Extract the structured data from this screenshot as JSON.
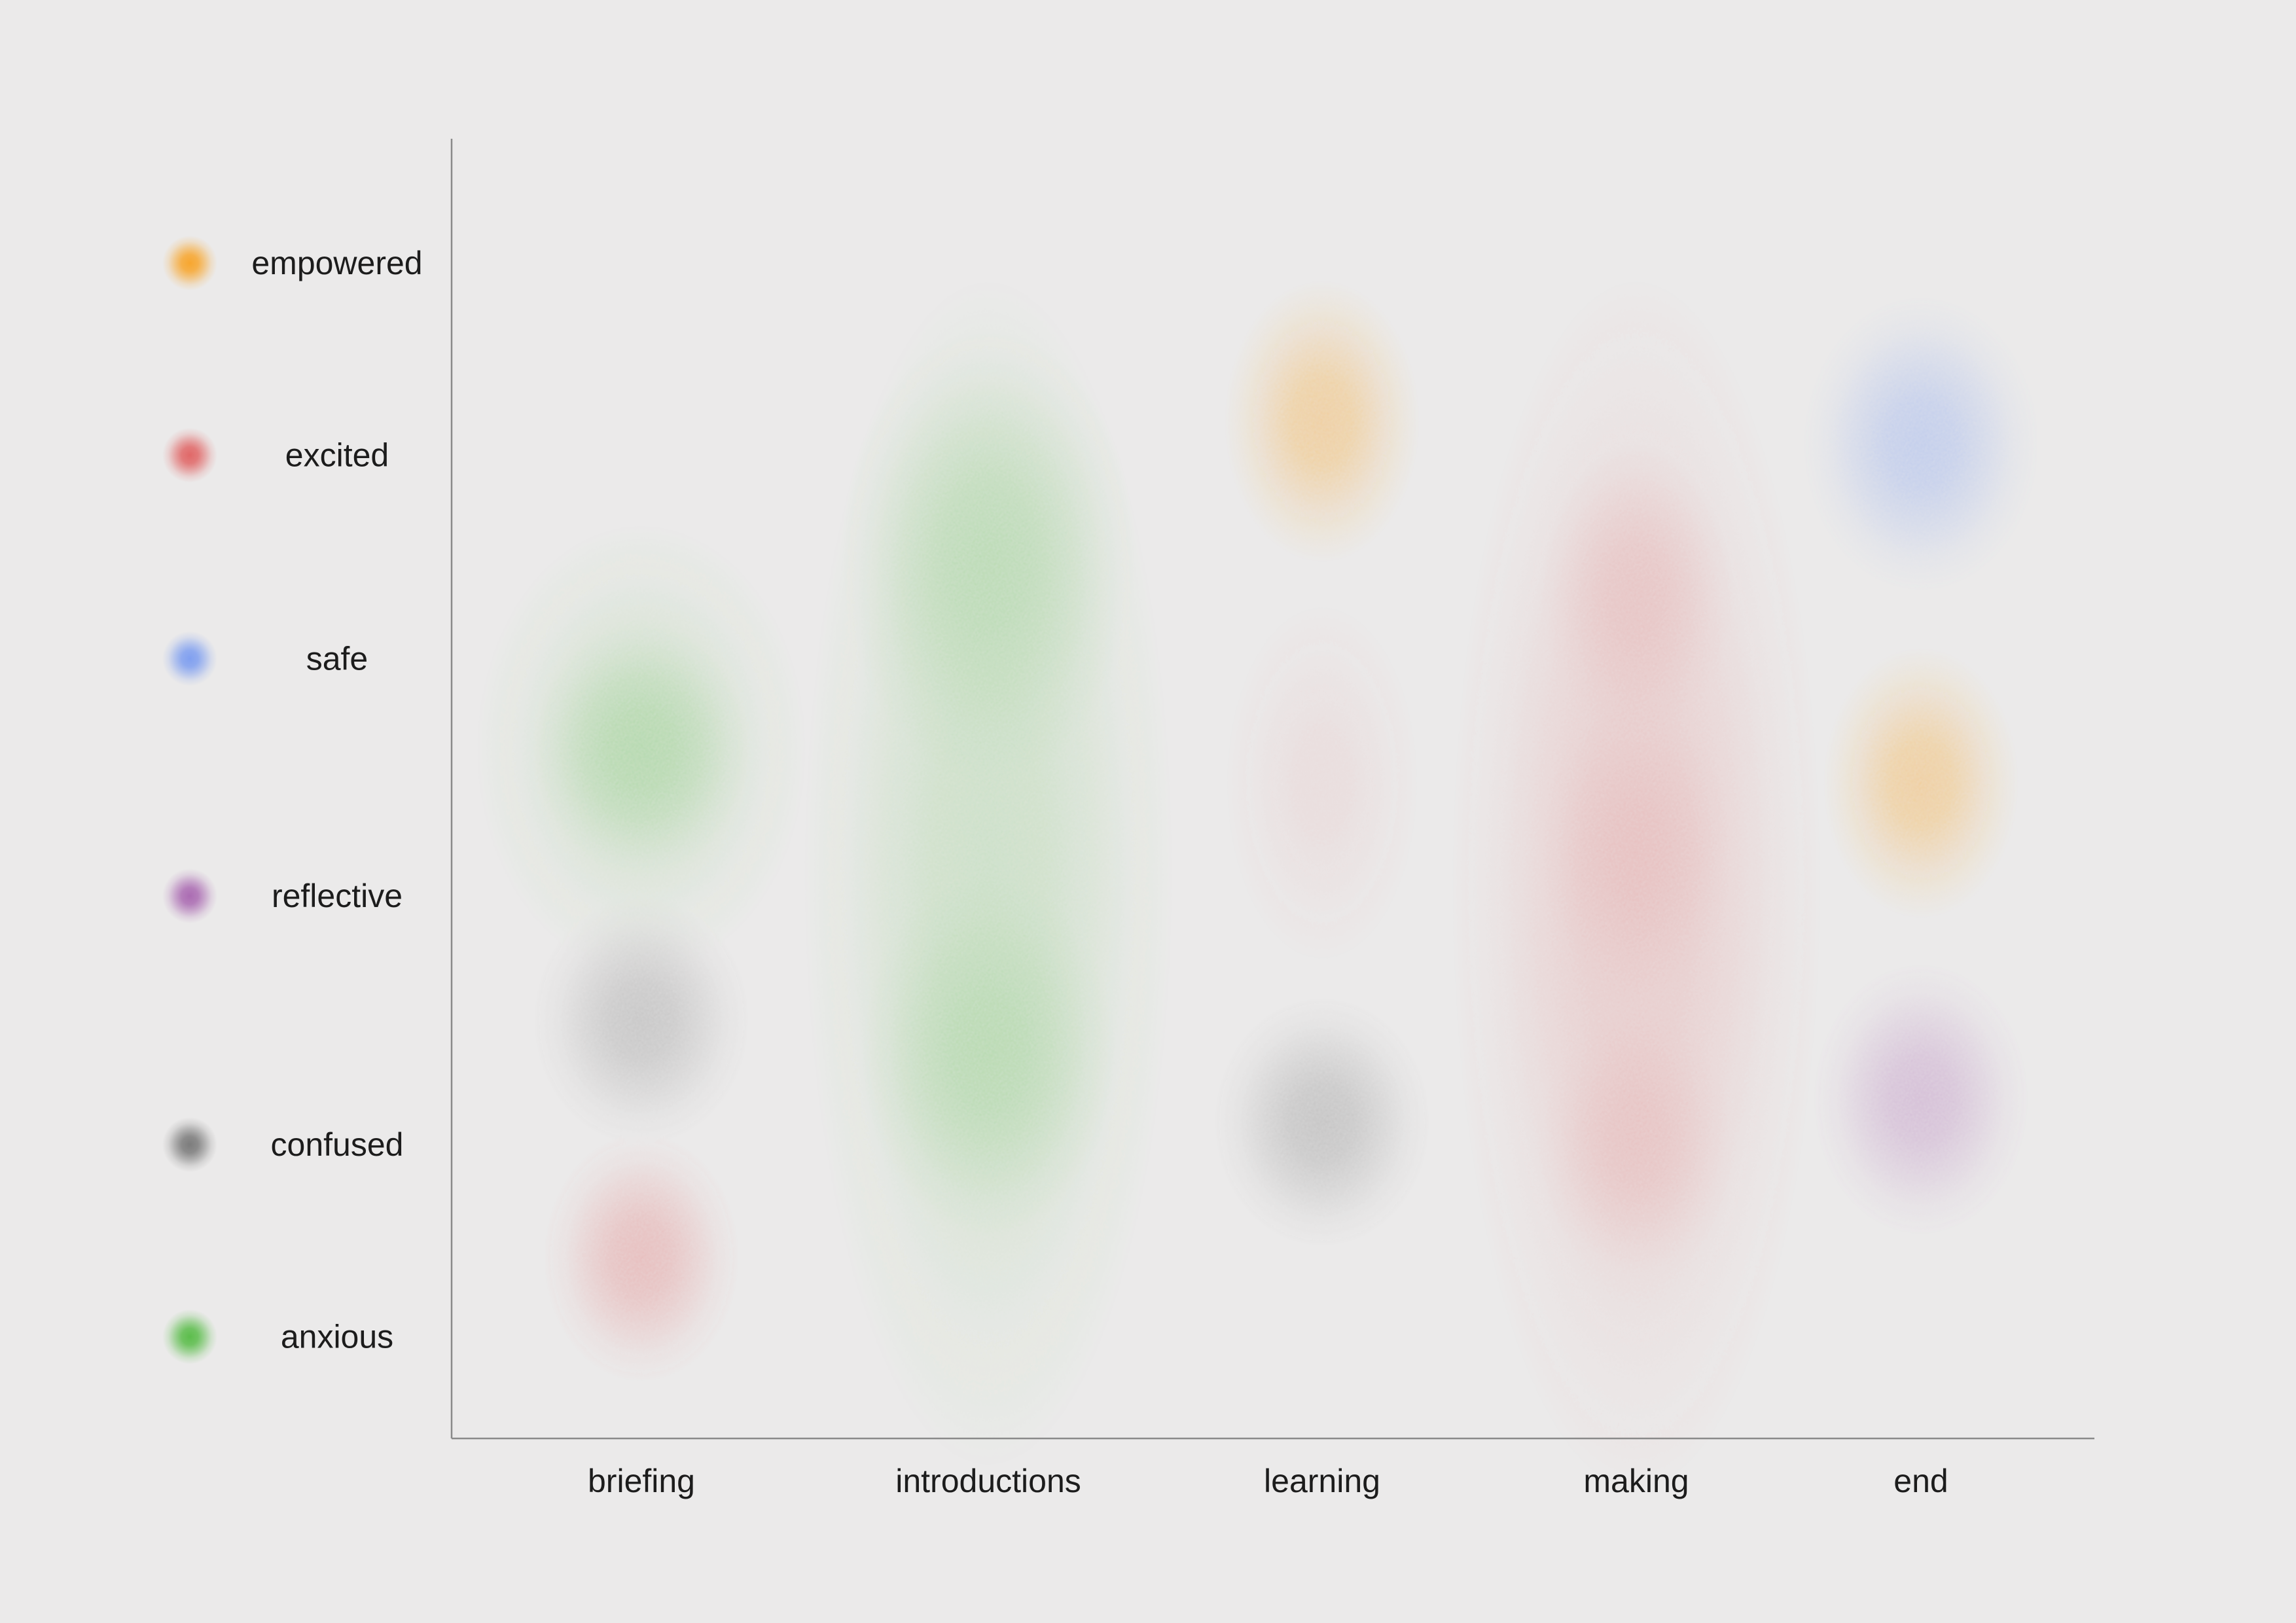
{
  "chart_data": {
    "type": "scatter",
    "title": "",
    "xlabel": "",
    "ylabel": "",
    "categories": [
      "briefing",
      "introductions",
      "learning",
      "making",
      "end"
    ],
    "emotions": [
      {
        "name": "empowered",
        "color": "#f8a326",
        "y": 5.2
      },
      {
        "name": "excited",
        "color": "#e06262",
        "y": 4.35
      },
      {
        "name": "safe",
        "color": "#7b9cf0",
        "y": 3.45
      },
      {
        "name": "reflective",
        "color": "#a866b0",
        "y": 2.4
      },
      {
        "name": "confused",
        "color": "#777777",
        "y": 1.3
      },
      {
        "name": "anxious",
        "color": "#55bb44",
        "y": 0.45
      }
    ],
    "ylim": [
      0,
      5.75
    ],
    "blobs": [
      {
        "category": "introductions",
        "emotion": "anxious",
        "y": 2.5,
        "rx": 0.95,
        "ry": 5.3,
        "intensity": 0.55
      },
      {
        "category": "briefing",
        "emotion": "anxious",
        "y": 3.05,
        "rx": 0.85,
        "ry": 2.0,
        "intensity": 0.5
      },
      {
        "category": "introductions",
        "emotion": "anxious",
        "y": 3.9,
        "rx": 0.75,
        "ry": 2.0,
        "intensity": 0.75
      },
      {
        "category": "introductions",
        "emotion": "anxious",
        "y": 1.7,
        "rx": 0.65,
        "ry": 1.6,
        "intensity": 0.75
      },
      {
        "category": "briefing",
        "emotion": "anxious",
        "y": 3.05,
        "rx": 0.55,
        "ry": 1.1,
        "intensity": 0.85
      },
      {
        "category": "making",
        "emotion": "excited",
        "y": 2.45,
        "rx": 0.95,
        "ry": 5.4,
        "intensity": 0.6
      },
      {
        "category": "making",
        "emotion": "excited",
        "y": 3.75,
        "rx": 0.5,
        "ry": 1.3,
        "intensity": 0.55
      },
      {
        "category": "making",
        "emotion": "excited",
        "y": 2.6,
        "rx": 0.5,
        "ry": 1.3,
        "intensity": 0.5
      },
      {
        "category": "making",
        "emotion": "excited",
        "y": 1.3,
        "rx": 0.5,
        "ry": 1.2,
        "intensity": 0.55
      },
      {
        "category": "learning",
        "emotion": "excited",
        "y": 2.9,
        "rx": 0.5,
        "ry": 1.6,
        "intensity": 0.25
      },
      {
        "category": "learning",
        "emotion": "empowered",
        "y": 4.5,
        "rx": 0.5,
        "ry": 1.25,
        "intensity": 1.0
      },
      {
        "category": "learning",
        "emotion": "confused",
        "y": 1.4,
        "rx": 0.55,
        "ry": 1.1,
        "intensity": 0.85
      },
      {
        "category": "briefing",
        "emotion": "confused",
        "y": 1.85,
        "rx": 0.55,
        "ry": 1.1,
        "intensity": 0.8
      },
      {
        "category": "briefing",
        "emotion": "excited",
        "y": 0.8,
        "rx": 0.5,
        "ry": 1.1,
        "intensity": 0.85
      },
      {
        "category": "end",
        "emotion": "safe",
        "y": 4.4,
        "rx": 0.6,
        "ry": 1.3,
        "intensity": 0.95
      },
      {
        "category": "end",
        "emotion": "empowered",
        "y": 2.9,
        "rx": 0.5,
        "ry": 1.2,
        "intensity": 1.0
      },
      {
        "category": "end",
        "emotion": "reflective",
        "y": 1.5,
        "rx": 0.55,
        "ry": 1.2,
        "intensity": 0.85
      }
    ]
  }
}
